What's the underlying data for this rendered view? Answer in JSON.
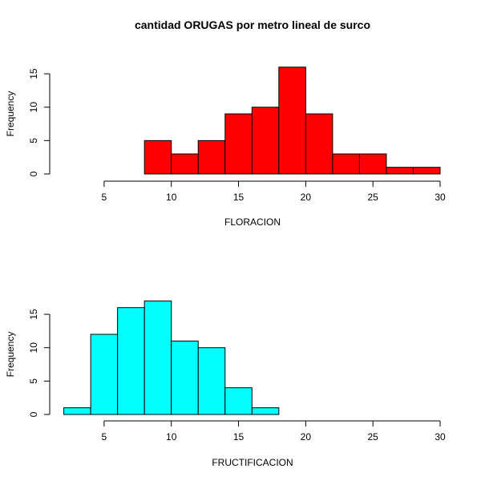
{
  "title": "cantidad ORUGAS por metro lineal de surco",
  "chart_data": [
    {
      "type": "bar",
      "subtype": "histogram",
      "xlabel": "FLORACION",
      "ylabel": "Frequency",
      "xlim": [
        5,
        30
      ],
      "ylim": [
        0,
        16
      ],
      "x_ticks": [
        5,
        10,
        15,
        20,
        25,
        30
      ],
      "y_ticks": [
        0,
        5,
        10,
        15
      ],
      "bar_color": "#FF0000",
      "bins": [
        {
          "x0": 8,
          "x1": 10,
          "count": 5
        },
        {
          "x0": 10,
          "x1": 12,
          "count": 3
        },
        {
          "x0": 12,
          "x1": 14,
          "count": 5
        },
        {
          "x0": 14,
          "x1": 16,
          "count": 9
        },
        {
          "x0": 16,
          "x1": 18,
          "count": 10
        },
        {
          "x0": 18,
          "x1": 20,
          "count": 16
        },
        {
          "x0": 20,
          "x1": 22,
          "count": 9
        },
        {
          "x0": 22,
          "x1": 24,
          "count": 3
        },
        {
          "x0": 24,
          "x1": 26,
          "count": 3
        },
        {
          "x0": 26,
          "x1": 28,
          "count": 1
        },
        {
          "x0": 28,
          "x1": 30,
          "count": 1
        }
      ]
    },
    {
      "type": "bar",
      "subtype": "histogram",
      "xlabel": "FRUCTIFICACION",
      "ylabel": "Frequency",
      "xlim": [
        2,
        30
      ],
      "ylim": [
        0,
        17
      ],
      "x_ticks": [
        5,
        10,
        15,
        20,
        25,
        30
      ],
      "y_ticks": [
        0,
        5,
        10,
        15
      ],
      "bar_color": "#00FFFF",
      "bins": [
        {
          "x0": 2,
          "x1": 4,
          "count": 1
        },
        {
          "x0": 4,
          "x1": 6,
          "count": 12
        },
        {
          "x0": 6,
          "x1": 8,
          "count": 16
        },
        {
          "x0": 8,
          "x1": 10,
          "count": 17
        },
        {
          "x0": 10,
          "x1": 12,
          "count": 11
        },
        {
          "x0": 12,
          "x1": 14,
          "count": 10
        },
        {
          "x0": 14,
          "x1": 16,
          "count": 4
        },
        {
          "x0": 16,
          "x1": 18,
          "count": 1
        }
      ]
    }
  ]
}
